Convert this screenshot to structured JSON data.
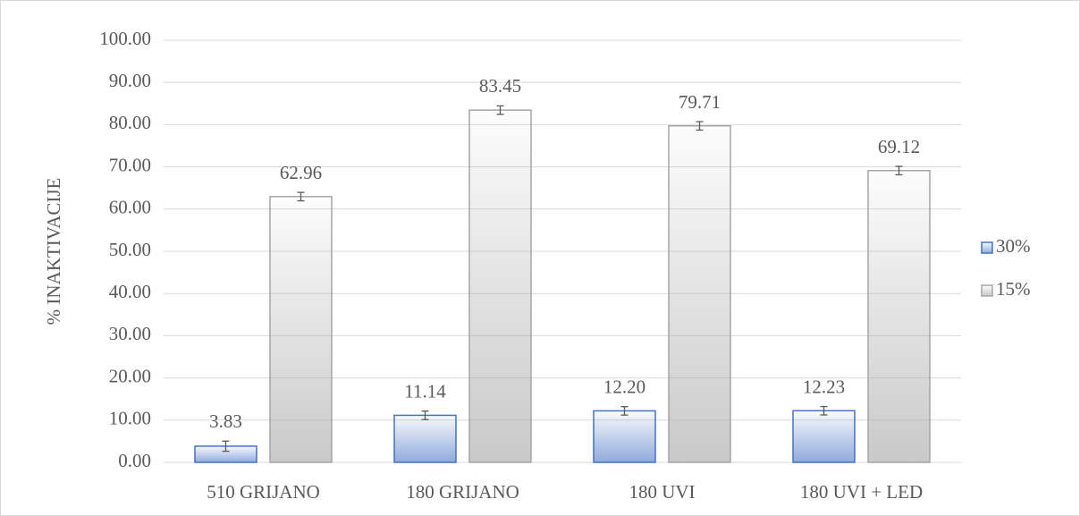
{
  "chart_data": {
    "type": "bar",
    "y_label": "% INAKTIVACIJE",
    "categories": [
      "510 GRIJANO",
      "180 GRIJANO",
      "180 UVI",
      "180 UVI + LED"
    ],
    "series": [
      {
        "name": "30%",
        "color": "#4472c4",
        "values": [
          3.83,
          11.14,
          12.2,
          12.23
        ],
        "value_labels": [
          "3.83",
          "11.14",
          "12.20",
          "12.23"
        ],
        "errors": [
          1.2,
          1.0,
          1.0,
          1.0
        ]
      },
      {
        "name": "15%",
        "color": "#a5a5a5",
        "values": [
          62.96,
          83.45,
          79.71,
          69.12
        ],
        "value_labels": [
          "62.96",
          "83.45",
          "79.71",
          "69.12"
        ],
        "errors": [
          1.0,
          1.0,
          1.0,
          1.0
        ]
      }
    ],
    "ylim": [
      0,
      100
    ],
    "yticks": [
      {
        "value": 0,
        "label": "0.00"
      },
      {
        "value": 10,
        "label": "10.00"
      },
      {
        "value": 20,
        "label": "20.00"
      },
      {
        "value": 30,
        "label": "30.00"
      },
      {
        "value": 40,
        "label": "40.00"
      },
      {
        "value": 50,
        "label": "50.00"
      },
      {
        "value": 60,
        "label": "60.00"
      },
      {
        "value": 70,
        "label": "70.00"
      },
      {
        "value": 80,
        "label": "80.00"
      },
      {
        "value": 90,
        "label": "90.00"
      },
      {
        "value": 100,
        "label": "100.00"
      }
    ],
    "grid": true,
    "legend": "right"
  }
}
